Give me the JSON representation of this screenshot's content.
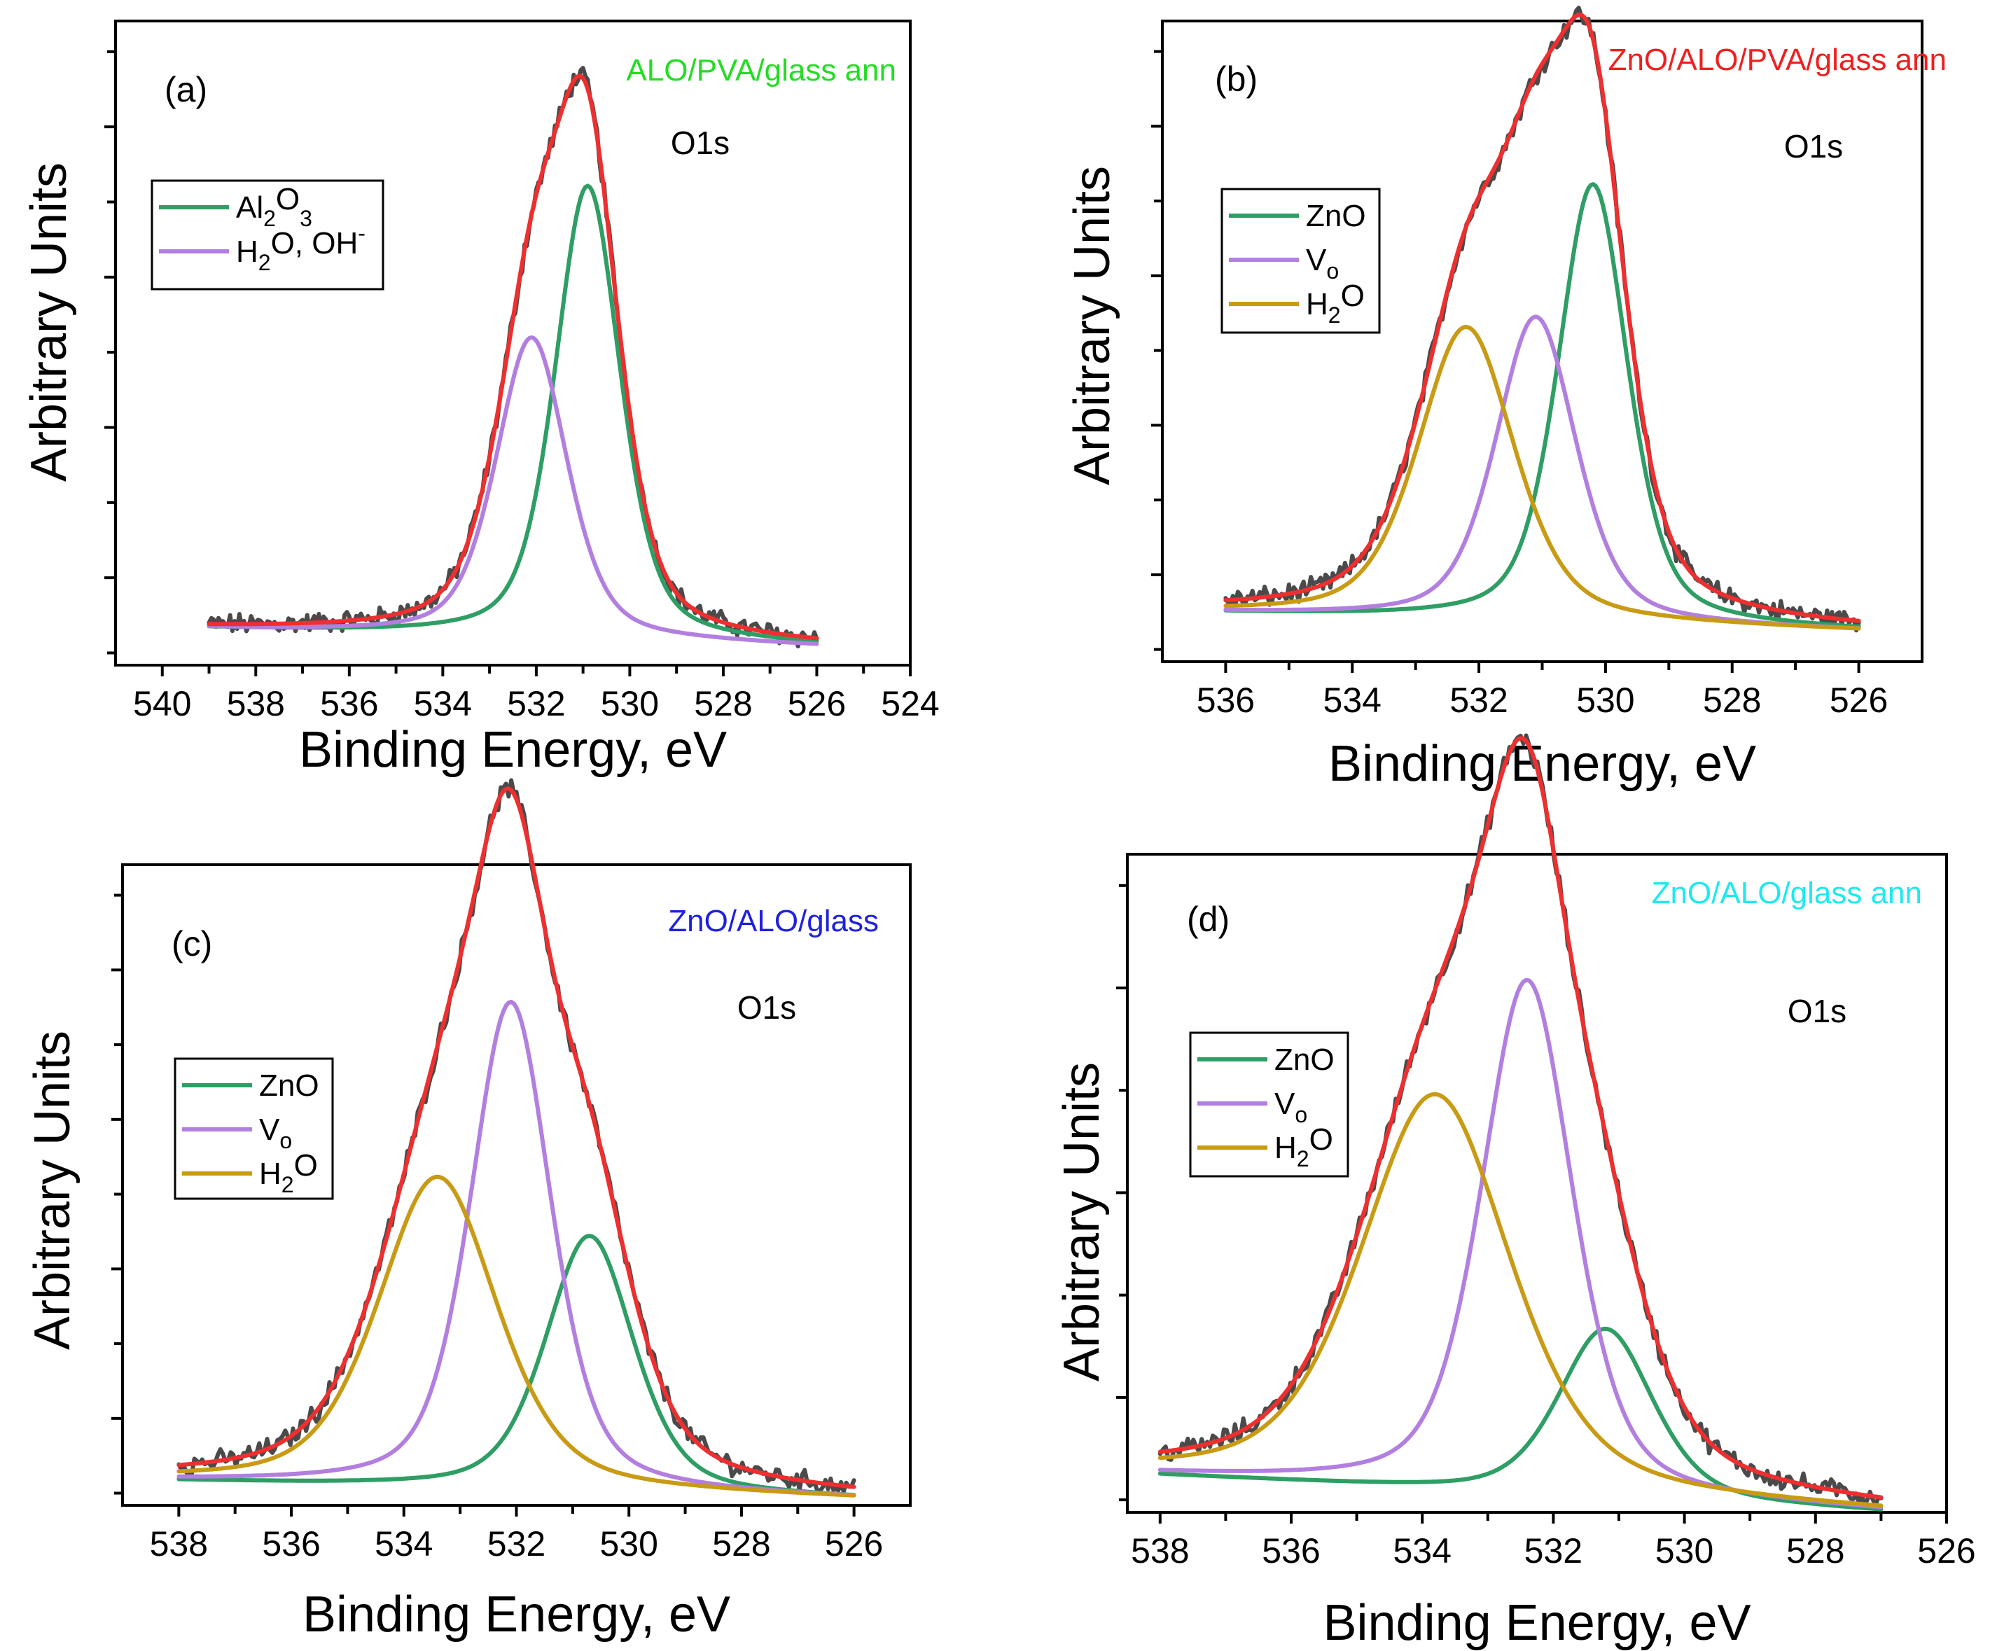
{
  "colors": {
    "raw": "#4a4a4a",
    "envelope": "#ef2f2f",
    "green": "#2e9e64",
    "purple": "#b27fe0",
    "gold": "#c99a14"
  },
  "chart_data": [
    {
      "type": "line",
      "panel_label": "(a)",
      "sample": "ALO/PVA/glass ann",
      "sample_color": "#22dd22",
      "peak": "O1s",
      "xlabel": "Binding Energy, eV",
      "ylabel": "Arbitrary Units",
      "xlim": [
        541,
        524
      ],
      "x_ticks": [
        "540",
        "538",
        "536",
        "534",
        "532",
        "530",
        "528",
        "526",
        "524"
      ],
      "x_range": [
        539,
        526
      ],
      "baseline": [
        0.06,
        0.03
      ],
      "ylim": [
        0,
        1.05
      ],
      "y_ticks": 4,
      "legend_position": "top-left",
      "components": [
        {
          "name": "Al2O3",
          "base": "Al",
          "sub": "2",
          "rest": "O",
          "sub2": "3",
          "sup": "",
          "color": "green",
          "center": 530.9,
          "height": 0.74,
          "fwhm": 1.65
        },
        {
          "name": "H2O, OH-",
          "base": "H",
          "sub": "2",
          "rest": "O, OH",
          "sub2": "",
          "sup": "-",
          "color": "purple",
          "center": 532.1,
          "height": 0.49,
          "fwhm": 1.8
        }
      ]
    },
    {
      "type": "line",
      "panel_label": "(b)",
      "sample": "ZnO/ALO/PVA/glass ann",
      "sample_color": "#ee2020",
      "peak": "O1s",
      "xlabel": "Binding Energy, eV",
      "ylabel": "Arbitrary Units",
      "xlim": [
        537,
        525
      ],
      "x_ticks": [
        "536",
        "534",
        "532",
        "530",
        "528",
        "526"
      ],
      "x_range": [
        536,
        526
      ],
      "baseline": [
        0.08,
        0.05
      ],
      "ylim": [
        0,
        1.05
      ],
      "y_ticks": 4,
      "legend_position": "top-left",
      "components": [
        {
          "name": "ZnO",
          "base": "ZnO",
          "sub": "",
          "rest": "",
          "sub2": "",
          "sup": "",
          "color": "green",
          "center": 530.2,
          "height": 0.72,
          "fwhm": 1.3
        },
        {
          "name": "Vo",
          "base": "V",
          "sub": "o",
          "rest": "",
          "sub2": "",
          "sup": "",
          "color": "purple",
          "center": 531.1,
          "height": 0.5,
          "fwhm": 1.5
        },
        {
          "name": "H2O",
          "base": "H",
          "sub": "2",
          "rest": "O",
          "sub2": "",
          "sup": "",
          "color": "gold",
          "center": 532.2,
          "height": 0.48,
          "fwhm": 1.8
        }
      ]
    },
    {
      "type": "line",
      "panel_label": "(c)",
      "sample": "ZnO/ALO/glass",
      "sample_color": "#2020dd",
      "peak": "O1s",
      "xlabel": "Binding Energy, eV",
      "ylabel": "Arbitrary Units",
      "xlim": [
        539,
        525
      ],
      "x_ticks": [
        "538",
        "536",
        "534",
        "532",
        "530",
        "528",
        "526"
      ],
      "x_range": [
        538,
        526
      ],
      "baseline": [
        0.04,
        0.01
      ],
      "ylim": [
        0,
        1.05
      ],
      "y_ticks": 4,
      "legend_position": "middle-left",
      "components": [
        {
          "name": "ZnO",
          "base": "ZnO",
          "sub": "",
          "rest": "",
          "sub2": "",
          "sup": "",
          "color": "green",
          "center": 530.7,
          "height": 0.42,
          "fwhm": 1.85
        },
        {
          "name": "Vo",
          "base": "V",
          "sub": "o",
          "rest": "",
          "sub2": "",
          "sup": "",
          "color": "purple",
          "center": 532.1,
          "height": 0.8,
          "fwhm": 1.7
        },
        {
          "name": "H2O",
          "base": "H",
          "sub": "2",
          "rest": "O",
          "sub2": "",
          "sup": "",
          "color": "gold",
          "center": 533.4,
          "height": 0.51,
          "fwhm": 2.5
        }
      ]
    },
    {
      "type": "line",
      "panel_label": "(d)",
      "sample": "ZnO/ALO/glass ann",
      "sample_color": "#1de9f0",
      "peak": "O1s",
      "xlabel": "Binding Energy, eV",
      "ylabel": "Arbitrary Units",
      "xlim": [
        538.5,
        526
      ],
      "x_ticks": [
        "538",
        "536",
        "534",
        "532",
        "530",
        "528",
        "526"
      ],
      "x_range": [
        538,
        527
      ],
      "baseline": [
        0.06,
        0.0
      ],
      "ylim": [
        0,
        1.05
      ],
      "y_ticks": 3,
      "legend_position": "middle-left",
      "components": [
        {
          "name": "ZnO",
          "base": "ZnO",
          "sub": "",
          "rest": "",
          "sub2": "",
          "sup": "",
          "color": "green",
          "center": 531.2,
          "height": 0.27,
          "fwhm": 1.7
        },
        {
          "name": "Vo",
          "base": "V",
          "sub": "o",
          "rest": "",
          "sub2": "",
          "sup": "",
          "color": "purple",
          "center": 532.4,
          "height": 0.82,
          "fwhm": 1.65
        },
        {
          "name": "H2O",
          "base": "H",
          "sub": "2",
          "rest": "O",
          "sub2": "",
          "sup": "",
          "color": "gold",
          "center": 533.8,
          "height": 0.63,
          "fwhm": 2.7
        }
      ]
    }
  ]
}
